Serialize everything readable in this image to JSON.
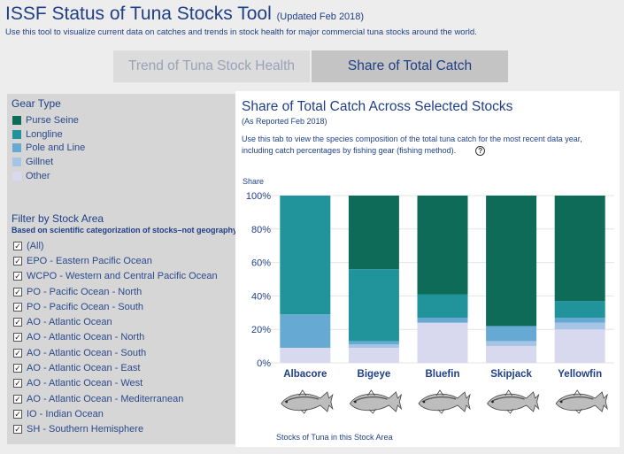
{
  "header": {
    "title": "ISSF Status of Tuna Stocks Tool",
    "updated": "(Updated Feb 2018)",
    "subtitle": "Use this tool to visualize current data on catches and trends in stock health for major commercial tuna stocks around the world."
  },
  "tabs": [
    {
      "label": "Trend of Tuna Stock Health",
      "active": false
    },
    {
      "label": "Share of Total Catch",
      "active": true
    }
  ],
  "sidebar": {
    "gear_title": "Gear Type",
    "gear_types": [
      {
        "label": "Purse Seine",
        "color": "#0e6b57"
      },
      {
        "label": "Longline",
        "color": "#21939b"
      },
      {
        "label": "Pole and Line",
        "color": "#66aad3"
      },
      {
        "label": "Gillnet",
        "color": "#a6c4e6"
      },
      {
        "label": "Other",
        "color": "#d8d8ee"
      }
    ],
    "filter_title": "Filter by Stock Area",
    "filter_subtitle": "Based on scientific categorization of stocks–not geography",
    "filters": [
      {
        "label": "(All)",
        "checked": true
      },
      {
        "label": "EPO - Eastern Pacific Ocean",
        "checked": true
      },
      {
        "label": "WCPO - Western and Central Pacific Ocean",
        "checked": true
      },
      {
        "label": "PO - Pacific Ocean - North",
        "checked": true
      },
      {
        "label": "PO - Pacific Ocean - South",
        "checked": true
      },
      {
        "label": "AO - Atlantic Ocean",
        "checked": true
      },
      {
        "label": "AO - Atlantic Ocean - North",
        "checked": true
      },
      {
        "label": "AO - Atlantic Ocean - South",
        "checked": true
      },
      {
        "label": "AO - Atlantic Ocean - East",
        "checked": true
      },
      {
        "label": "AO - Atlantic Ocean - West",
        "checked": true
      },
      {
        "label": "AO - Atlantic Ocean - Mediterranean",
        "checked": true
      },
      {
        "label": "IO - Indian Ocean",
        "checked": true
      },
      {
        "label": "SH - Southern Hemisphere",
        "checked": true
      }
    ]
  },
  "main": {
    "title": "Share of Total Catch Across Selected Stocks",
    "subtitle": "(As Reported Feb 2018)",
    "description": "Use this tab to view the species composition of the total tuna catch for the most recent data year, including catch percentages by fishing gear (fishing method).",
    "help_icon": "question-circle-icon",
    "fish_caption": "Stocks of Tuna in this Stock Area"
  },
  "chart_data": {
    "type": "bar",
    "stacked": true,
    "ylabel": "Share",
    "ylim": [
      0,
      100
    ],
    "yticks": [
      "0%",
      "20%",
      "40%",
      "60%",
      "80%",
      "100%"
    ],
    "categories": [
      "Albacore",
      "Bigeye",
      "Bluefin",
      "Skipjack",
      "Yellowfin"
    ],
    "series": [
      {
        "name": "Other",
        "color": "#d8d8ee",
        "values": [
          9,
          9,
          24,
          10,
          20
        ]
      },
      {
        "name": "Gillnet",
        "color": "#a6c4e6",
        "values": [
          0,
          2,
          0,
          3,
          4
        ]
      },
      {
        "name": "Pole and Line",
        "color": "#66aad3",
        "values": [
          20,
          2,
          3,
          9,
          3
        ]
      },
      {
        "name": "Longline",
        "color": "#21939b",
        "values": [
          71,
          43,
          14,
          0,
          10
        ]
      },
      {
        "name": "Purse Seine",
        "color": "#0e6b57",
        "values": [
          0,
          44,
          59,
          78,
          63
        ]
      }
    ],
    "grid": true
  }
}
